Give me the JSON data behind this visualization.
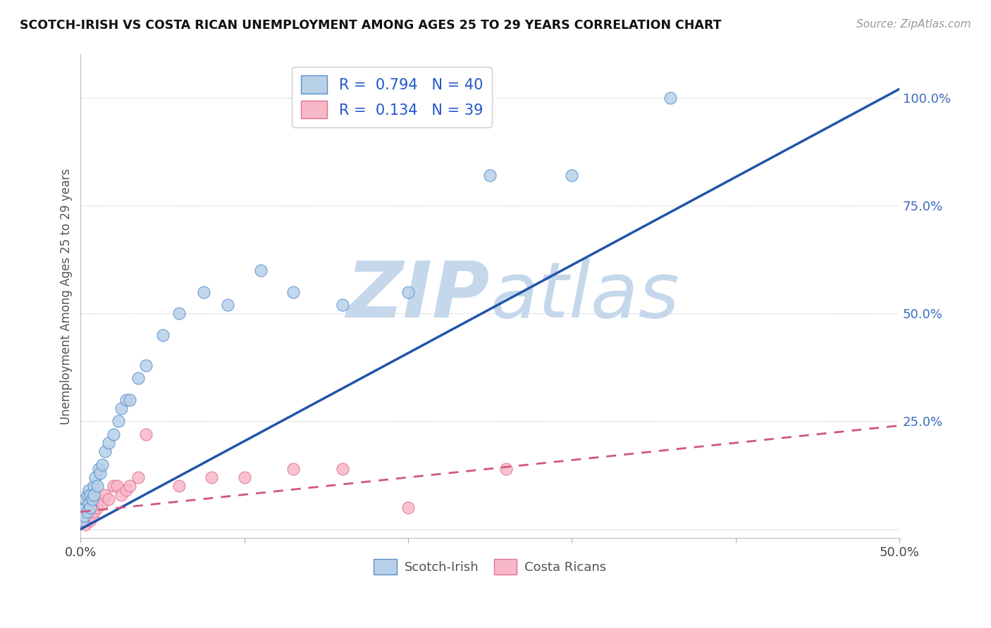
{
  "title": "SCOTCH-IRISH VS COSTA RICAN UNEMPLOYMENT AMONG AGES 25 TO 29 YEARS CORRELATION CHART",
  "source": "Source: ZipAtlas.com",
  "ylabel": "Unemployment Among Ages 25 to 29 years",
  "xlim": [
    0.0,
    0.5
  ],
  "ylim": [
    -0.02,
    1.1
  ],
  "xticks": [
    0.0,
    0.1,
    0.2,
    0.3,
    0.4,
    0.5
  ],
  "yticks": [
    0.0,
    0.25,
    0.5,
    0.75,
    1.0
  ],
  "xticklabels": [
    "0.0%",
    "",
    "",
    "",
    "",
    "50.0%"
  ],
  "yticklabels": [
    "",
    "25.0%",
    "50.0%",
    "75.0%",
    "100.0%"
  ],
  "scotch_irish_R": 0.794,
  "scotch_irish_N": 40,
  "costa_rican_R": 0.134,
  "costa_rican_N": 39,
  "scotch_irish_color": "#b8d0e8",
  "scotch_irish_edge_color": "#5590cc",
  "scotch_irish_line_color": "#2255aa",
  "costa_rican_color": "#f8b8c8",
  "costa_rican_edge_color": "#e07090",
  "costa_rican_line_color": "#d05878",
  "watermark_color": "#c5d8eb",
  "legend_text_color": "#2255cc",
  "scotch_irish_x": [
    0.001,
    0.001,
    0.002,
    0.002,
    0.003,
    0.003,
    0.004,
    0.004,
    0.005,
    0.005,
    0.006,
    0.006,
    0.007,
    0.008,
    0.008,
    0.009,
    0.01,
    0.011,
    0.012,
    0.013,
    0.015,
    0.017,
    0.02,
    0.023,
    0.025,
    0.028,
    0.03,
    0.035,
    0.04,
    0.05,
    0.06,
    0.075,
    0.09,
    0.11,
    0.13,
    0.16,
    0.2,
    0.25,
    0.3,
    0.36
  ],
  "scotch_irish_y": [
    0.02,
    0.04,
    0.03,
    0.06,
    0.05,
    0.07,
    0.04,
    0.08,
    0.06,
    0.09,
    0.05,
    0.08,
    0.07,
    0.1,
    0.08,
    0.12,
    0.1,
    0.14,
    0.13,
    0.15,
    0.18,
    0.2,
    0.22,
    0.25,
    0.28,
    0.3,
    0.3,
    0.35,
    0.38,
    0.45,
    0.5,
    0.55,
    0.52,
    0.6,
    0.55,
    0.52,
    0.55,
    0.82,
    0.82,
    1.0
  ],
  "costa_rican_x": [
    0.001,
    0.001,
    0.001,
    0.002,
    0.002,
    0.002,
    0.003,
    0.003,
    0.003,
    0.004,
    0.004,
    0.004,
    0.005,
    0.005,
    0.006,
    0.006,
    0.007,
    0.007,
    0.008,
    0.009,
    0.01,
    0.011,
    0.013,
    0.015,
    0.017,
    0.02,
    0.022,
    0.025,
    0.028,
    0.03,
    0.035,
    0.04,
    0.06,
    0.08,
    0.1,
    0.13,
    0.16,
    0.2,
    0.26
  ],
  "costa_rican_y": [
    0.02,
    0.03,
    0.05,
    0.02,
    0.04,
    0.06,
    0.01,
    0.03,
    0.05,
    0.02,
    0.04,
    0.06,
    0.03,
    0.05,
    0.02,
    0.04,
    0.03,
    0.05,
    0.04,
    0.06,
    0.05,
    0.07,
    0.06,
    0.08,
    0.07,
    0.1,
    0.1,
    0.08,
    0.09,
    0.1,
    0.12,
    0.22,
    0.1,
    0.12,
    0.12,
    0.14,
    0.14,
    0.05,
    0.14
  ],
  "background_color": "#ffffff",
  "grid_color": "#cccccc",
  "si_line_x0": 0.0,
  "si_line_x1": 0.5,
  "si_line_y0": 0.0,
  "si_line_y1": 1.02,
  "cr_line_x0": 0.0,
  "cr_line_x1": 0.5,
  "cr_line_y0": 0.04,
  "cr_line_y1": 0.24
}
